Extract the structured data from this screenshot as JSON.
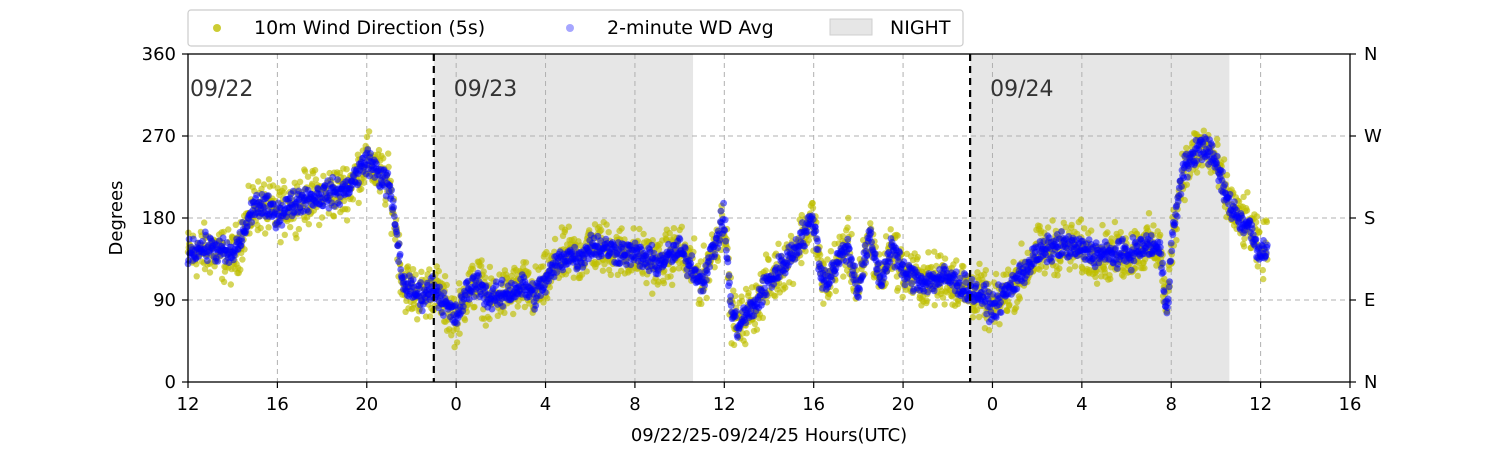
{
  "chart_data": {
    "type": "scatter",
    "xlabel": "09/22/25-09/24/25  Hours(UTC)",
    "ylabel": "Degrees",
    "xlim": [
      12,
      64
    ],
    "ylim": [
      0,
      360
    ],
    "x_ticks": [
      {
        "v": 12,
        "label": "12"
      },
      {
        "v": 16,
        "label": "16"
      },
      {
        "v": 20,
        "label": "20"
      },
      {
        "v": 24,
        "label": "0"
      },
      {
        "v": 28,
        "label": "4"
      },
      {
        "v": 32,
        "label": "8"
      },
      {
        "v": 36,
        "label": "12"
      },
      {
        "v": 40,
        "label": "16"
      },
      {
        "v": 44,
        "label": "20"
      },
      {
        "v": 48,
        "label": "0"
      },
      {
        "v": 52,
        "label": "4"
      },
      {
        "v": 56,
        "label": "8"
      },
      {
        "v": 60,
        "label": "12"
      },
      {
        "v": 64,
        "label": "16"
      }
    ],
    "y_ticks": [
      {
        "v": 0,
        "label": "0"
      },
      {
        "v": 90,
        "label": "90"
      },
      {
        "v": 180,
        "label": "180"
      },
      {
        "v": 270,
        "label": "270"
      },
      {
        "v": 360,
        "label": "360"
      }
    ],
    "right_ticks": [
      {
        "v": 0,
        "label": "N"
      },
      {
        "v": 90,
        "label": "E"
      },
      {
        "v": 180,
        "label": "S"
      },
      {
        "v": 270,
        "label": "W"
      },
      {
        "v": 360,
        "label": "N"
      }
    ],
    "grid": true,
    "legend": {
      "placement": "top",
      "entries": [
        {
          "label": "10m Wind Direction (5s)",
          "color": "#bfbf00",
          "kind": "marker"
        },
        {
          "label": "2-minute WD Avg",
          "color": "#0000ff",
          "kind": "marker-faint"
        },
        {
          "label": "NIGHT",
          "color": "#e6e6e6",
          "kind": "patch"
        }
      ]
    },
    "night_periods": [
      [
        23.0,
        34.6
      ],
      [
        47.0,
        58.6
      ]
    ],
    "day_boundaries": [
      {
        "x": 12,
        "label": "09/22"
      },
      {
        "x": 23.0,
        "label": "09/23"
      },
      {
        "x": 47.0,
        "label": "09/24"
      }
    ],
    "series": [
      {
        "name": "10m Wind Direction (5s)",
        "color": "#bfbf00",
        "spread": 28,
        "x": [
          12.0,
          13.0,
          14.0,
          14.5,
          15.0,
          16.0,
          17.0,
          18.0,
          19.0,
          19.5,
          20.0,
          20.5,
          21.0,
          21.3,
          21.6,
          22.0,
          22.5,
          23.0,
          23.5,
          24.0,
          24.5,
          25.0,
          25.5,
          26.0,
          26.5,
          27.0,
          27.5,
          28.0,
          28.5,
          29.0,
          29.5,
          30.0,
          31.0,
          32.0,
          33.0,
          34.0,
          35.0,
          35.5,
          36.0,
          36.3,
          36.6,
          37.0,
          37.3,
          37.6,
          38.0,
          38.5,
          39.0,
          39.5,
          40.0,
          40.3,
          40.6,
          41.0,
          41.5,
          42.0,
          42.5,
          43.0,
          43.5,
          44.0,
          45.0,
          46.0,
          47.0,
          47.5,
          48.0,
          49.0,
          50.0,
          51.0,
          52.0,
          53.0,
          54.0,
          55.0,
          55.5,
          55.8,
          56.0,
          56.5,
          57.0,
          57.5,
          58.0,
          58.5,
          59.0,
          59.5,
          60.0,
          60.3
        ],
        "y": [
          140,
          145,
          135,
          165,
          195,
          185,
          200,
          205,
          210,
          225,
          245,
          230,
          215,
          170,
          110,
          100,
          95,
          105,
          85,
          70,
          100,
          110,
          90,
          95,
          100,
          105,
          95,
          110,
          130,
          140,
          135,
          150,
          145,
          140,
          130,
          145,
          110,
          145,
          180,
          80,
          60,
          75,
          80,
          95,
          110,
          125,
          140,
          160,
          180,
          120,
          110,
          130,
          150,
          100,
          160,
          110,
          150,
          120,
          110,
          115,
          100,
          95,
          80,
          110,
          140,
          150,
          145,
          140,
          140,
          150,
          145,
          75,
          150,
          230,
          250,
          260,
          240,
          200,
          180,
          170,
          140,
          150
        ]
      },
      {
        "name": "2-minute WD Avg",
        "color": "#0000ff",
        "spread": 14,
        "x": [
          12.0,
          13.0,
          14.0,
          14.5,
          15.0,
          16.0,
          17.0,
          18.0,
          19.0,
          19.5,
          20.0,
          20.5,
          21.0,
          21.3,
          21.6,
          22.0,
          22.5,
          23.0,
          23.5,
          24.0,
          24.5,
          25.0,
          25.5,
          26.0,
          26.5,
          27.0,
          27.5,
          28.0,
          28.5,
          29.0,
          29.5,
          30.0,
          31.0,
          32.0,
          33.0,
          34.0,
          35.0,
          35.5,
          36.0,
          36.3,
          36.6,
          37.0,
          37.3,
          37.6,
          38.0,
          38.5,
          39.0,
          39.5,
          40.0,
          40.3,
          40.6,
          41.0,
          41.5,
          42.0,
          42.5,
          43.0,
          43.5,
          44.0,
          45.0,
          46.0,
          47.0,
          47.5,
          48.0,
          49.0,
          50.0,
          51.0,
          52.0,
          53.0,
          54.0,
          55.0,
          55.5,
          55.8,
          56.0,
          56.5,
          57.0,
          57.5,
          58.0,
          58.5,
          59.0,
          59.5,
          60.0,
          60.3
        ],
        "y": [
          145,
          148,
          138,
          165,
          195,
          185,
          200,
          205,
          210,
          225,
          245,
          230,
          215,
          170,
          110,
          100,
          95,
          105,
          85,
          70,
          100,
          110,
          90,
          95,
          100,
          105,
          95,
          110,
          130,
          140,
          135,
          150,
          145,
          140,
          130,
          145,
          110,
          145,
          180,
          80,
          60,
          75,
          80,
          95,
          110,
          125,
          140,
          160,
          180,
          120,
          110,
          130,
          150,
          100,
          160,
          110,
          150,
          120,
          110,
          115,
          100,
          95,
          80,
          110,
          140,
          150,
          145,
          140,
          140,
          150,
          145,
          75,
          150,
          230,
          250,
          260,
          240,
          200,
          180,
          170,
          140,
          150
        ]
      }
    ]
  }
}
